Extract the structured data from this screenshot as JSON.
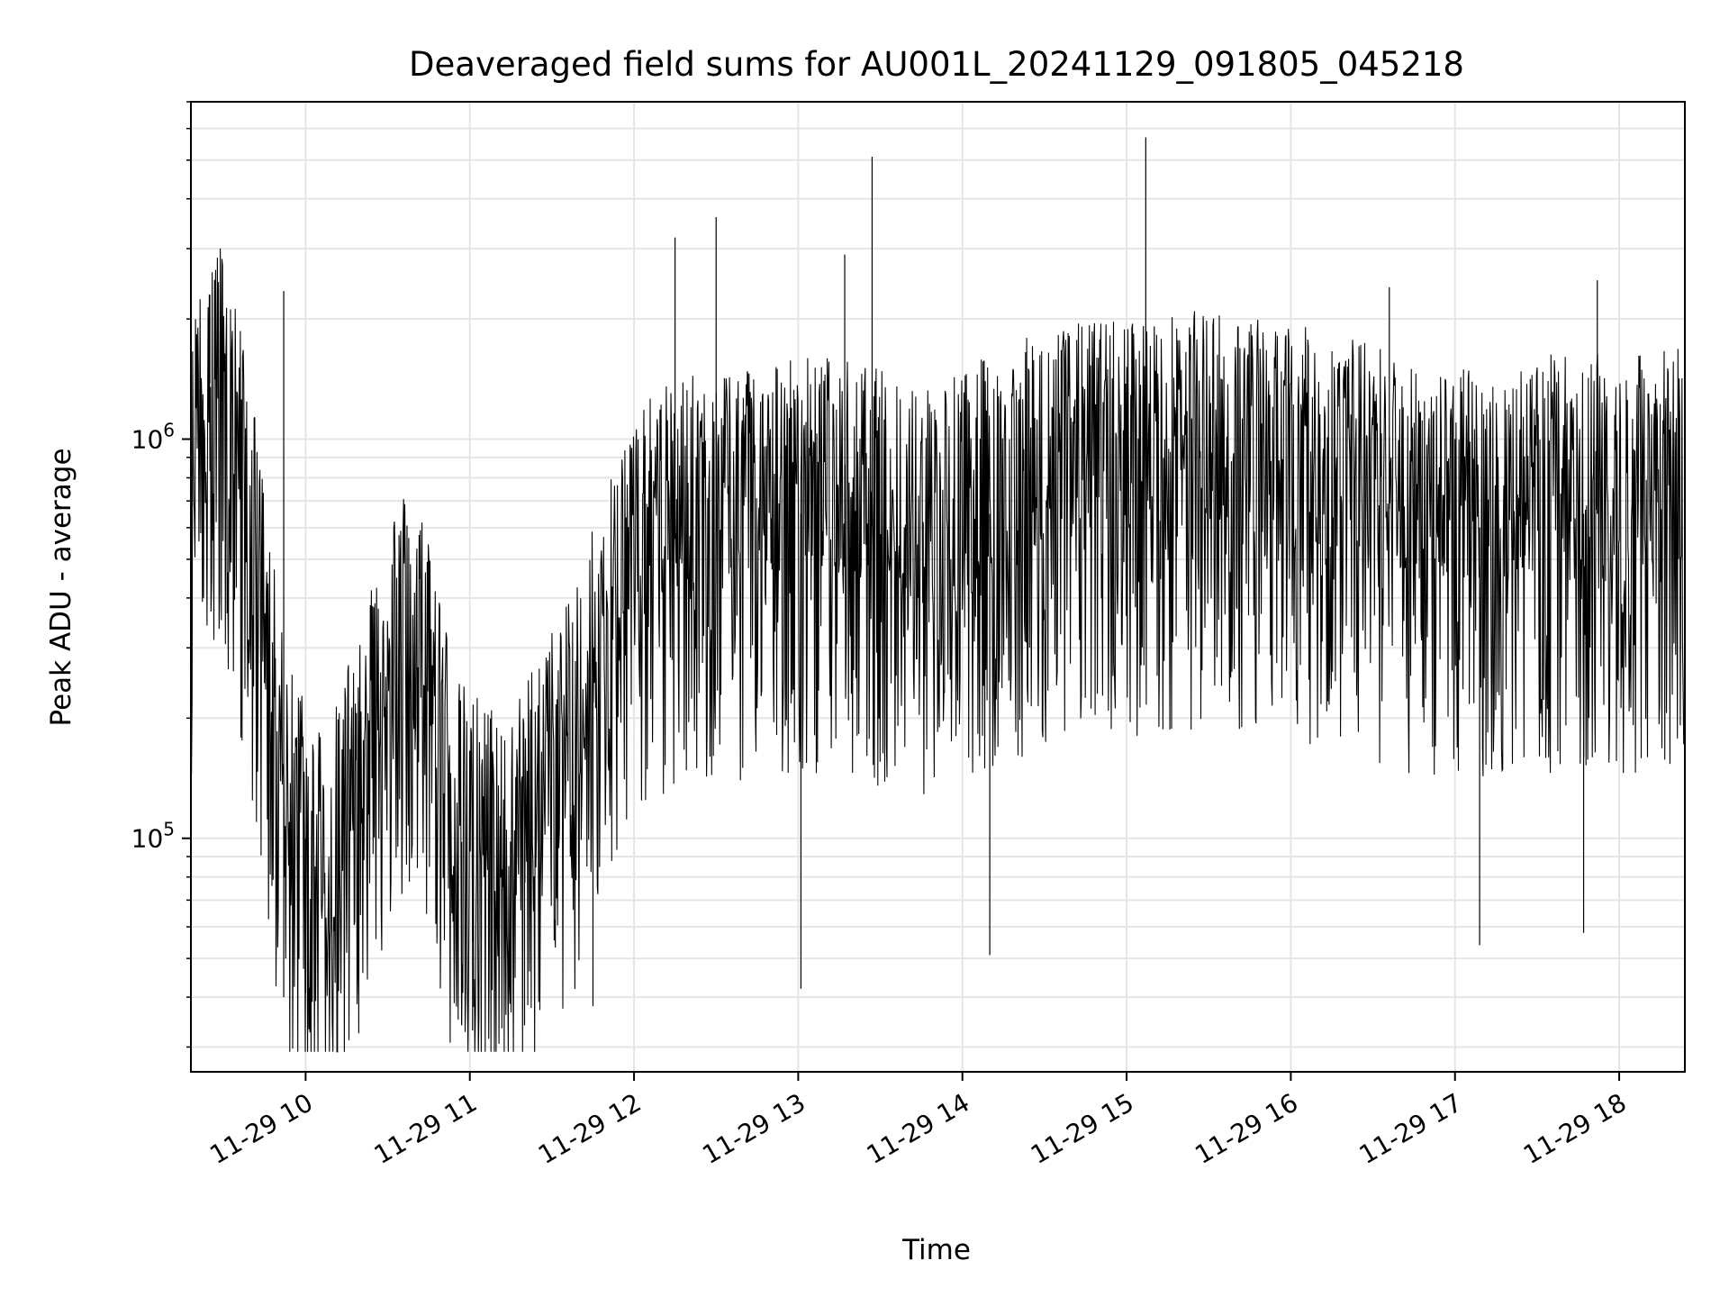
{
  "chart_data": {
    "type": "line",
    "title": "Deaveraged field sums for AU001L_20241129_091805_045218",
    "xlabel": "Time",
    "ylabel": "Peak ADU - average",
    "yscale": "log",
    "grid": true,
    "line_color": "#000000",
    "grid_color": "#e5e5e5",
    "xlim": [
      "2024-11-29 09:18:05",
      "2024-11-29 18:24:00"
    ],
    "ylim": [
      26000,
      7000000
    ],
    "xticks": [
      {
        "time": "2024-11-29 10:00",
        "label": "11-29 10"
      },
      {
        "time": "2024-11-29 11:00",
        "label": "11-29 11"
      },
      {
        "time": "2024-11-29 12:00",
        "label": "11-29 12"
      },
      {
        "time": "2024-11-29 13:00",
        "label": "11-29 13"
      },
      {
        "time": "2024-11-29 14:00",
        "label": "11-29 14"
      },
      {
        "time": "2024-11-29 15:00",
        "label": "11-29 15"
      },
      {
        "time": "2024-11-29 16:00",
        "label": "11-29 16"
      },
      {
        "time": "2024-11-29 17:00",
        "label": "11-29 17"
      },
      {
        "time": "2024-11-29 18:00",
        "label": "11-29 18"
      }
    ],
    "yticks": [
      {
        "value": 100000,
        "base": "10",
        "exp": "5"
      },
      {
        "value": 1000000,
        "base": "10",
        "exp": "6"
      }
    ],
    "series": [
      {
        "points": [
          [
            "2024-11-29 09:18",
            600000
          ],
          [
            "2024-11-29 09:22",
            1500000
          ],
          [
            "2024-11-29 09:30",
            1200000
          ],
          [
            "2024-11-29 09:38",
            700000
          ],
          [
            "2024-11-29 09:45",
            300000
          ],
          [
            "2024-11-29 09:52",
            120000
          ],
          [
            "2024-11-29 10:00",
            100000
          ],
          [
            "2024-11-29 10:08",
            70000
          ],
          [
            "2024-11-29 10:15",
            110000
          ],
          [
            "2024-11-29 10:25",
            200000
          ],
          [
            "2024-11-29 10:35",
            300000
          ],
          [
            "2024-11-29 10:45",
            250000
          ],
          [
            "2024-11-29 10:55",
            100000
          ],
          [
            "2024-11-29 11:05",
            90000
          ],
          [
            "2024-11-29 11:15",
            80000
          ],
          [
            "2024-11-29 11:25",
            120000
          ],
          [
            "2024-11-29 11:35",
            150000
          ],
          [
            "2024-11-29 11:45",
            250000
          ],
          [
            "2024-11-29 11:55",
            400000
          ],
          [
            "2024-11-29 12:10",
            550000
          ],
          [
            "2024-11-29 12:30",
            600000
          ],
          [
            "2024-11-29 12:50",
            650000
          ],
          [
            "2024-11-29 13:10",
            650000
          ],
          [
            "2024-11-29 13:30",
            600000
          ],
          [
            "2024-11-29 13:50",
            550000
          ],
          [
            "2024-11-29 14:10",
            650000
          ],
          [
            "2024-11-29 14:30",
            750000
          ],
          [
            "2024-11-29 14:50",
            800000
          ],
          [
            "2024-11-29 15:10",
            800000
          ],
          [
            "2024-11-29 15:30",
            850000
          ],
          [
            "2024-11-29 15:50",
            800000
          ],
          [
            "2024-11-29 16:10",
            750000
          ],
          [
            "2024-11-29 16:30",
            700000
          ],
          [
            "2024-11-29 16:50",
            600000
          ],
          [
            "2024-11-29 17:10",
            600000
          ],
          [
            "2024-11-29 17:30",
            650000
          ],
          [
            "2024-11-29 17:50",
            650000
          ],
          [
            "2024-11-29 18:10",
            650000
          ],
          [
            "2024-11-29 18:24",
            700000
          ]
        ],
        "spikes": [
          [
            "2024-11-29 09:25",
            2300000
          ],
          [
            "2024-11-29 09:52",
            2350000
          ],
          [
            "2024-11-29 12:15",
            3200000
          ],
          [
            "2024-11-29 12:30",
            3600000
          ],
          [
            "2024-11-29 13:17",
            2900000
          ],
          [
            "2024-11-29 13:27",
            5100000
          ],
          [
            "2024-11-29 15:07",
            5700000
          ],
          [
            "2024-11-29 16:36",
            2400000
          ],
          [
            "2024-11-29 17:52",
            2500000
          ]
        ],
        "dips": [
          [
            "2024-11-29 09:52",
            40000
          ],
          [
            "2024-11-29 10:00",
            41000
          ],
          [
            "2024-11-29 10:57",
            34000
          ],
          [
            "2024-11-29 11:01",
            33000
          ],
          [
            "2024-11-29 11:20",
            34000
          ],
          [
            "2024-11-29 11:45",
            38000
          ],
          [
            "2024-11-29 13:01",
            42000
          ],
          [
            "2024-11-29 14:10",
            51000
          ],
          [
            "2024-11-29 17:09",
            54000
          ],
          [
            "2024-11-29 17:47",
            58000
          ]
        ]
      }
    ]
  }
}
